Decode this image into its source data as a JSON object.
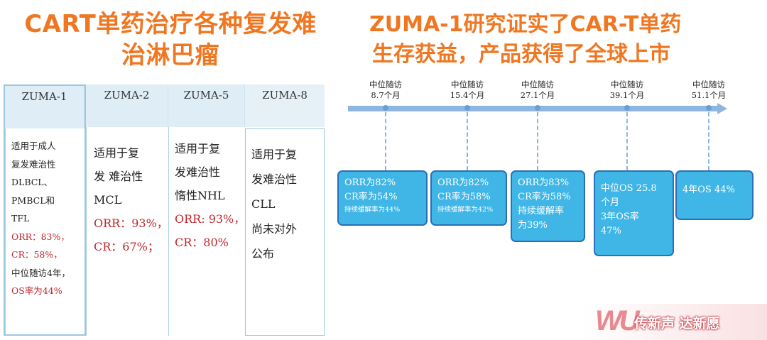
{
  "titles": {
    "left_line1": "CART单药治疗各种复发难",
    "left_line2": "治淋巴瘤",
    "right_line1": "ZUMA-1研究证实了CAR-T单药",
    "right_line2": "生存获益，产品获得了全球上市"
  },
  "table": {
    "columns": [
      {
        "header": "ZUMA-1",
        "lines": [
          {
            "text": "适用于成人"
          },
          {
            "text": "复发难治性"
          },
          {
            "text": "DLBCL、"
          },
          {
            "text": "PMBCL和"
          },
          {
            "text": "TFL"
          },
          {
            "text": "ORR：83%，",
            "red": true
          },
          {
            "text": "CR：58%，",
            "red": true
          },
          {
            "text": "中位随访4年，"
          },
          {
            "text": "OS率为44%",
            "red": true
          }
        ]
      },
      {
        "header": "ZUMA-2",
        "lines": [
          {
            "text": "适用于复"
          },
          {
            "text": "发 难治性"
          },
          {
            "text": "MCL"
          },
          {
            "text": "ORR：93%，",
            "red": true
          },
          {
            "text": "CR：67%；",
            "red": true
          }
        ]
      },
      {
        "header": "ZUMA-5",
        "lines": [
          {
            "text": "适用于复"
          },
          {
            "text": "发难治性"
          },
          {
            "text": "惰性NHL"
          },
          {
            "text": "ORR: 93%，",
            "red": true
          },
          {
            "text": "CR：80%",
            "red": true
          }
        ]
      },
      {
        "header": "ZUMA-8",
        "lines": [
          {
            "text": "适用于复"
          },
          {
            "text": "发难治性"
          },
          {
            "text": "CLL"
          },
          {
            "text": "尚未对外"
          },
          {
            "text": "公布"
          }
        ]
      }
    ]
  },
  "timeline": {
    "milestones": [
      {
        "label1": "中位随访",
        "label2": "8.7个月",
        "lines": [
          {
            "text": "ORR为82%"
          },
          {
            "text": "CR率为54%"
          },
          {
            "text": "持续缓解率为44%",
            "small": true
          }
        ]
      },
      {
        "label1": "中位随访",
        "label2": "15.4个月",
        "lines": [
          {
            "text": "ORR为82%"
          },
          {
            "text": "CR率为58%"
          },
          {
            "text": "持续缓解率为42%",
            "small": true
          }
        ]
      },
      {
        "label1": "中位随访",
        "label2": "27.1个月",
        "lines": [
          {
            "text": "ORR为83%"
          },
          {
            "text": "CR率为58%"
          },
          {
            "text": "持续缓解率"
          },
          {
            "text": "为39%"
          }
        ]
      },
      {
        "label1": "中位随访",
        "label2": "39.1个月",
        "lines": [
          {
            "text": "中位OS 25.8"
          },
          {
            "text": "个月"
          },
          {
            "text": "3年OS率"
          },
          {
            "text": "47%"
          }
        ]
      },
      {
        "label1": "中位随访",
        "label2": "51.1个月",
        "lines": [
          {
            "text": "4年OS 44%"
          }
        ]
      }
    ]
  },
  "watermark": {
    "mark": "WU",
    "text": "传新声 达新愿"
  }
}
